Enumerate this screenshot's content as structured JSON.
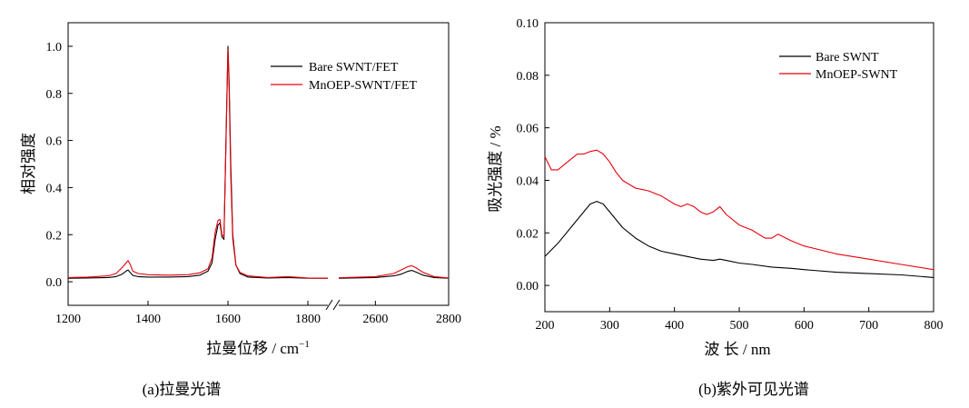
{
  "chart_data": [
    {
      "type": "line",
      "panel_label": "(a)拉曼光谱",
      "xlabel": "拉曼位移 / cm",
      "xlabel_sup": "−1",
      "ylabel": "相对强度",
      "axis_break": [
        1850,
        2500
      ],
      "xlim_left": [
        1200,
        1850
      ],
      "xlim_right": [
        2500,
        2800
      ],
      "ylim": [
        -0.1,
        1.1
      ],
      "x_ticks": [
        "1200",
        "1400",
        "1600",
        "1800",
        "2600",
        "2800"
      ],
      "y_ticks": [
        "0.0",
        "0.2",
        "0.4",
        "0.6",
        "0.8",
        "1.0"
      ],
      "legend_position": "top-right",
      "colors": {
        "series_0": "#000000",
        "series_1": "#e8000b"
      },
      "series": [
        {
          "name": "Bare SWNT/FET",
          "x": [
            1200,
            1250,
            1300,
            1320,
            1335,
            1345,
            1350,
            1355,
            1362,
            1375,
            1400,
            1450,
            1500,
            1530,
            1550,
            1560,
            1568,
            1575,
            1580,
            1585,
            1590,
            1595,
            1600,
            1603,
            1607,
            1612,
            1620,
            1630,
            1650,
            1700,
            1750,
            1800,
            1850,
            2500,
            2600,
            2650,
            2670,
            2690,
            2700,
            2710,
            2730,
            2760,
            2800
          ],
          "y": [
            0.015,
            0.016,
            0.018,
            0.022,
            0.032,
            0.045,
            0.05,
            0.04,
            0.027,
            0.022,
            0.02,
            0.02,
            0.022,
            0.028,
            0.045,
            0.08,
            0.18,
            0.24,
            0.25,
            0.19,
            0.18,
            0.6,
            1.0,
            0.85,
            0.5,
            0.2,
            0.07,
            0.035,
            0.02,
            0.016,
            0.018,
            0.015,
            0.015,
            0.015,
            0.018,
            0.025,
            0.032,
            0.045,
            0.048,
            0.042,
            0.028,
            0.018,
            0.015
          ]
        },
        {
          "name": "MnOEP-SWNT/FET",
          "x": [
            1200,
            1250,
            1300,
            1320,
            1335,
            1345,
            1350,
            1355,
            1362,
            1375,
            1400,
            1450,
            1500,
            1530,
            1550,
            1560,
            1568,
            1575,
            1580,
            1585,
            1590,
            1595,
            1600,
            1603,
            1607,
            1612,
            1620,
            1630,
            1650,
            1700,
            1750,
            1800,
            1850,
            2500,
            2600,
            2650,
            2670,
            2690,
            2700,
            2710,
            2730,
            2760,
            2800
          ],
          "y": [
            0.018,
            0.02,
            0.025,
            0.035,
            0.06,
            0.08,
            0.09,
            0.075,
            0.045,
            0.035,
            0.03,
            0.028,
            0.03,
            0.038,
            0.055,
            0.1,
            0.21,
            0.26,
            0.265,
            0.2,
            0.19,
            0.58,
            0.985,
            0.82,
            0.45,
            0.18,
            0.07,
            0.04,
            0.025,
            0.018,
            0.022,
            0.016,
            0.015,
            0.017,
            0.022,
            0.035,
            0.05,
            0.065,
            0.068,
            0.06,
            0.04,
            0.022,
            0.016
          ]
        }
      ]
    },
    {
      "type": "line",
      "panel_label": "(b)紫外可见光谱",
      "xlabel": "波 长 / nm",
      "ylabel": "吸光强度 / %",
      "xlim": [
        200,
        800
      ],
      "ylim": [
        -0.01,
        0.1
      ],
      "x_ticks": [
        "200",
        "300",
        "400",
        "500",
        "600",
        "700",
        "800"
      ],
      "y_ticks": [
        "0.00",
        "0.02",
        "0.04",
        "0.06",
        "0.08",
        "0.10"
      ],
      "legend_position": "top-right",
      "colors": {
        "series_0": "#000000",
        "series_1": "#e8000b"
      },
      "series": [
        {
          "name": "Bare SWNT",
          "x": [
            200,
            220,
            240,
            260,
            270,
            280,
            290,
            300,
            320,
            340,
            360,
            380,
            400,
            420,
            440,
            460,
            470,
            480,
            500,
            520,
            550,
            580,
            600,
            650,
            700,
            750,
            800
          ],
          "y": [
            0.011,
            0.016,
            0.022,
            0.028,
            0.031,
            0.032,
            0.031,
            0.028,
            0.022,
            0.018,
            0.015,
            0.013,
            0.012,
            0.011,
            0.01,
            0.0095,
            0.01,
            0.0095,
            0.0085,
            0.008,
            0.007,
            0.0065,
            0.006,
            0.005,
            0.0045,
            0.004,
            0.003
          ]
        },
        {
          "name": "MnOEP-SWNT",
          "x": [
            200,
            210,
            220,
            240,
            250,
            260,
            270,
            280,
            290,
            300,
            310,
            320,
            340,
            360,
            380,
            400,
            410,
            420,
            430,
            440,
            450,
            460,
            470,
            480,
            500,
            520,
            540,
            550,
            560,
            580,
            600,
            650,
            700,
            750,
            800
          ],
          "y": [
            0.049,
            0.044,
            0.044,
            0.048,
            0.05,
            0.05,
            0.051,
            0.0515,
            0.05,
            0.047,
            0.043,
            0.04,
            0.037,
            0.036,
            0.034,
            0.031,
            0.03,
            0.031,
            0.03,
            0.028,
            0.027,
            0.028,
            0.03,
            0.027,
            0.023,
            0.021,
            0.018,
            0.018,
            0.0195,
            0.017,
            0.015,
            0.012,
            0.01,
            0.008,
            0.006
          ]
        }
      ]
    }
  ]
}
